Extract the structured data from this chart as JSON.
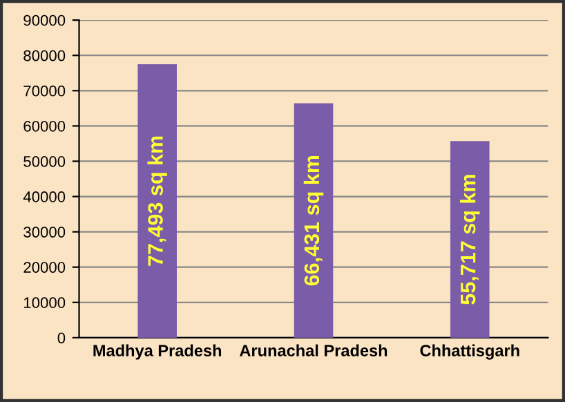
{
  "chart_data": {
    "type": "bar",
    "categories": [
      "Madhya Pradesh",
      "Arunachal Pradesh",
      "Chhattisgarh"
    ],
    "values": [
      77493,
      66431,
      55717
    ],
    "value_labels": [
      "77,493 sq km",
      "66,431 sq km",
      "55,717 sq km"
    ],
    "color": "#7a5ca8",
    "ylim": [
      0,
      90000
    ],
    "yticks": [
      0,
      10000,
      20000,
      30000,
      40000,
      50000,
      60000,
      70000,
      80000,
      90000
    ],
    "grid": "y",
    "legend": false
  }
}
